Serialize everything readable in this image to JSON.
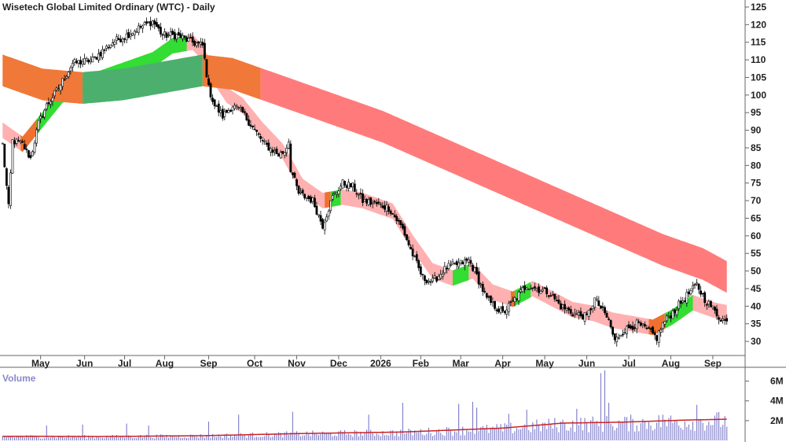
{
  "chart_data": {
    "type": "candlestick",
    "title": "Wisetech Global Limited Ordinary (WTC) - Daily",
    "price_axis": {
      "ylim": [
        26,
        127
      ],
      "ticks": [
        30,
        35,
        40,
        45,
        50,
        55,
        60,
        65,
        70,
        75,
        80,
        85,
        90,
        95,
        100,
        105,
        110,
        115,
        120,
        125
      ]
    },
    "x_axis": {
      "months": [
        "May",
        "Jun",
        "Jul",
        "Aug",
        "Sep",
        "Oct",
        "Nov",
        "Dec",
        "2026",
        "Feb",
        "Mar",
        "Apr",
        "May",
        "Jun",
        "Jul",
        "Aug",
        "Sep"
      ],
      "month_day_index": [
        19,
        41,
        61,
        81,
        103,
        126,
        147,
        168,
        189,
        209,
        229,
        250,
        271,
        292,
        313,
        334,
        355
      ]
    },
    "price_series": {
      "name": "WTC",
      "day_count": 363,
      "key_points": [
        [
          0,
          86
        ],
        [
          3,
          68
        ],
        [
          5,
          87
        ],
        [
          10,
          86
        ],
        [
          14,
          82
        ],
        [
          18,
          92
        ],
        [
          22,
          97
        ],
        [
          28,
          102
        ],
        [
          35,
          109
        ],
        [
          45,
          110
        ],
        [
          55,
          115
        ],
        [
          62,
          117
        ],
        [
          68,
          119
        ],
        [
          75,
          121
        ],
        [
          80,
          117
        ],
        [
          87,
          117
        ],
        [
          95,
          115
        ],
        [
          100,
          114
        ],
        [
          103,
          102
        ],
        [
          106,
          97
        ],
        [
          110,
          94
        ],
        [
          115,
          97
        ],
        [
          120,
          95
        ],
        [
          126,
          90
        ],
        [
          131,
          86
        ],
        [
          138,
          83
        ],
        [
          141,
          84
        ],
        [
          143,
          87
        ],
        [
          144,
          79
        ],
        [
          148,
          72
        ],
        [
          155,
          70
        ],
        [
          160,
          63
        ],
        [
          165,
          71
        ],
        [
          170,
          75
        ],
        [
          175,
          74
        ],
        [
          180,
          70
        ],
        [
          187,
          69
        ],
        [
          193,
          68
        ],
        [
          200,
          62
        ],
        [
          204,
          56
        ],
        [
          210,
          48
        ],
        [
          215,
          47
        ],
        [
          222,
          51
        ],
        [
          228,
          52
        ],
        [
          233,
          53
        ],
        [
          236,
          50
        ],
        [
          242,
          42
        ],
        [
          246,
          40
        ],
        [
          250,
          38
        ],
        [
          256,
          42
        ],
        [
          262,
          46
        ],
        [
          267,
          45
        ],
        [
          273,
          44
        ],
        [
          279,
          40
        ],
        [
          285,
          38
        ],
        [
          292,
          37
        ],
        [
          296,
          42
        ],
        [
          303,
          36
        ],
        [
          306,
          30
        ],
        [
          310,
          33
        ],
        [
          317,
          35
        ],
        [
          323,
          33
        ],
        [
          327,
          31
        ],
        [
          330,
          35
        ],
        [
          336,
          39
        ],
        [
          342,
          43
        ],
        [
          347,
          46
        ],
        [
          351,
          42
        ],
        [
          354,
          40
        ],
        [
          358,
          37
        ],
        [
          363,
          35
        ]
      ]
    },
    "moving_average_bands": [
      {
        "name": "short-term",
        "key_points": [
          [
            0,
            90
          ],
          [
            10,
            86
          ],
          [
            20,
            93
          ],
          [
            30,
            100
          ],
          [
            45,
            104
          ],
          [
            60,
            107
          ],
          [
            75,
            110
          ],
          [
            85,
            114
          ],
          [
            95,
            115
          ],
          [
            100,
            112
          ],
          [
            105,
            106
          ],
          [
            112,
            100
          ],
          [
            120,
            97
          ],
          [
            130,
            90
          ],
          [
            140,
            84
          ],
          [
            150,
            74
          ],
          [
            160,
            70
          ],
          [
            170,
            71
          ],
          [
            180,
            70
          ],
          [
            195,
            67
          ],
          [
            205,
            58
          ],
          [
            215,
            50
          ],
          [
            225,
            48
          ],
          [
            235,
            50
          ],
          [
            245,
            44
          ],
          [
            255,
            42
          ],
          [
            265,
            45
          ],
          [
            275,
            42
          ],
          [
            285,
            39
          ],
          [
            295,
            38
          ],
          [
            305,
            36
          ],
          [
            315,
            35
          ],
          [
            325,
            34
          ],
          [
            335,
            37
          ],
          [
            345,
            41
          ],
          [
            355,
            39
          ],
          [
            363,
            38
          ]
        ],
        "width": 2.2
      },
      {
        "name": "long-term",
        "key_points": [
          [
            0,
            107
          ],
          [
            20,
            103
          ],
          [
            40,
            102
          ],
          [
            60,
            103
          ],
          [
            80,
            105
          ],
          [
            100,
            107
          ],
          [
            115,
            106
          ],
          [
            130,
            103
          ],
          [
            150,
            99
          ],
          [
            170,
            95
          ],
          [
            190,
            91
          ],
          [
            210,
            86
          ],
          [
            230,
            81
          ],
          [
            250,
            76
          ],
          [
            270,
            71
          ],
          [
            290,
            66
          ],
          [
            310,
            61
          ],
          [
            330,
            56
          ],
          [
            350,
            52
          ],
          [
            363,
            48
          ]
        ],
        "width": 4.5
      }
    ],
    "volume": {
      "label": "Volume",
      "ylim": [
        0,
        7400000
      ],
      "ticks": [
        {
          "v": 2000000,
          "label": "2M"
        },
        {
          "v": 4000000,
          "label": "4M"
        },
        {
          "v": 6000000,
          "label": "6M"
        }
      ],
      "average_key_points": [
        [
          0,
          420000
        ],
        [
          50,
          400000
        ],
        [
          100,
          480000
        ],
        [
          150,
          700000
        ],
        [
          200,
          850000
        ],
        [
          250,
          1250000
        ],
        [
          280,
          1750000
        ],
        [
          310,
          1850000
        ],
        [
          340,
          2050000
        ],
        [
          363,
          2150000
        ]
      ],
      "spikes": [
        [
          22,
          1500000
        ],
        [
          40,
          1600000
        ],
        [
          62,
          1700000
        ],
        [
          73,
          1500000
        ],
        [
          103,
          1900000
        ],
        [
          118,
          2600000
        ],
        [
          145,
          2900000
        ],
        [
          183,
          2600000
        ],
        [
          200,
          3800000
        ],
        [
          228,
          3700000
        ],
        [
          235,
          3900000
        ],
        [
          237,
          3300000
        ],
        [
          253,
          2700000
        ],
        [
          262,
          3100000
        ],
        [
          287,
          3200000
        ],
        [
          299,
          6800000
        ],
        [
          301,
          7100000
        ],
        [
          303,
          3800000
        ],
        [
          330,
          2600000
        ],
        [
          347,
          3600000
        ]
      ]
    }
  }
}
